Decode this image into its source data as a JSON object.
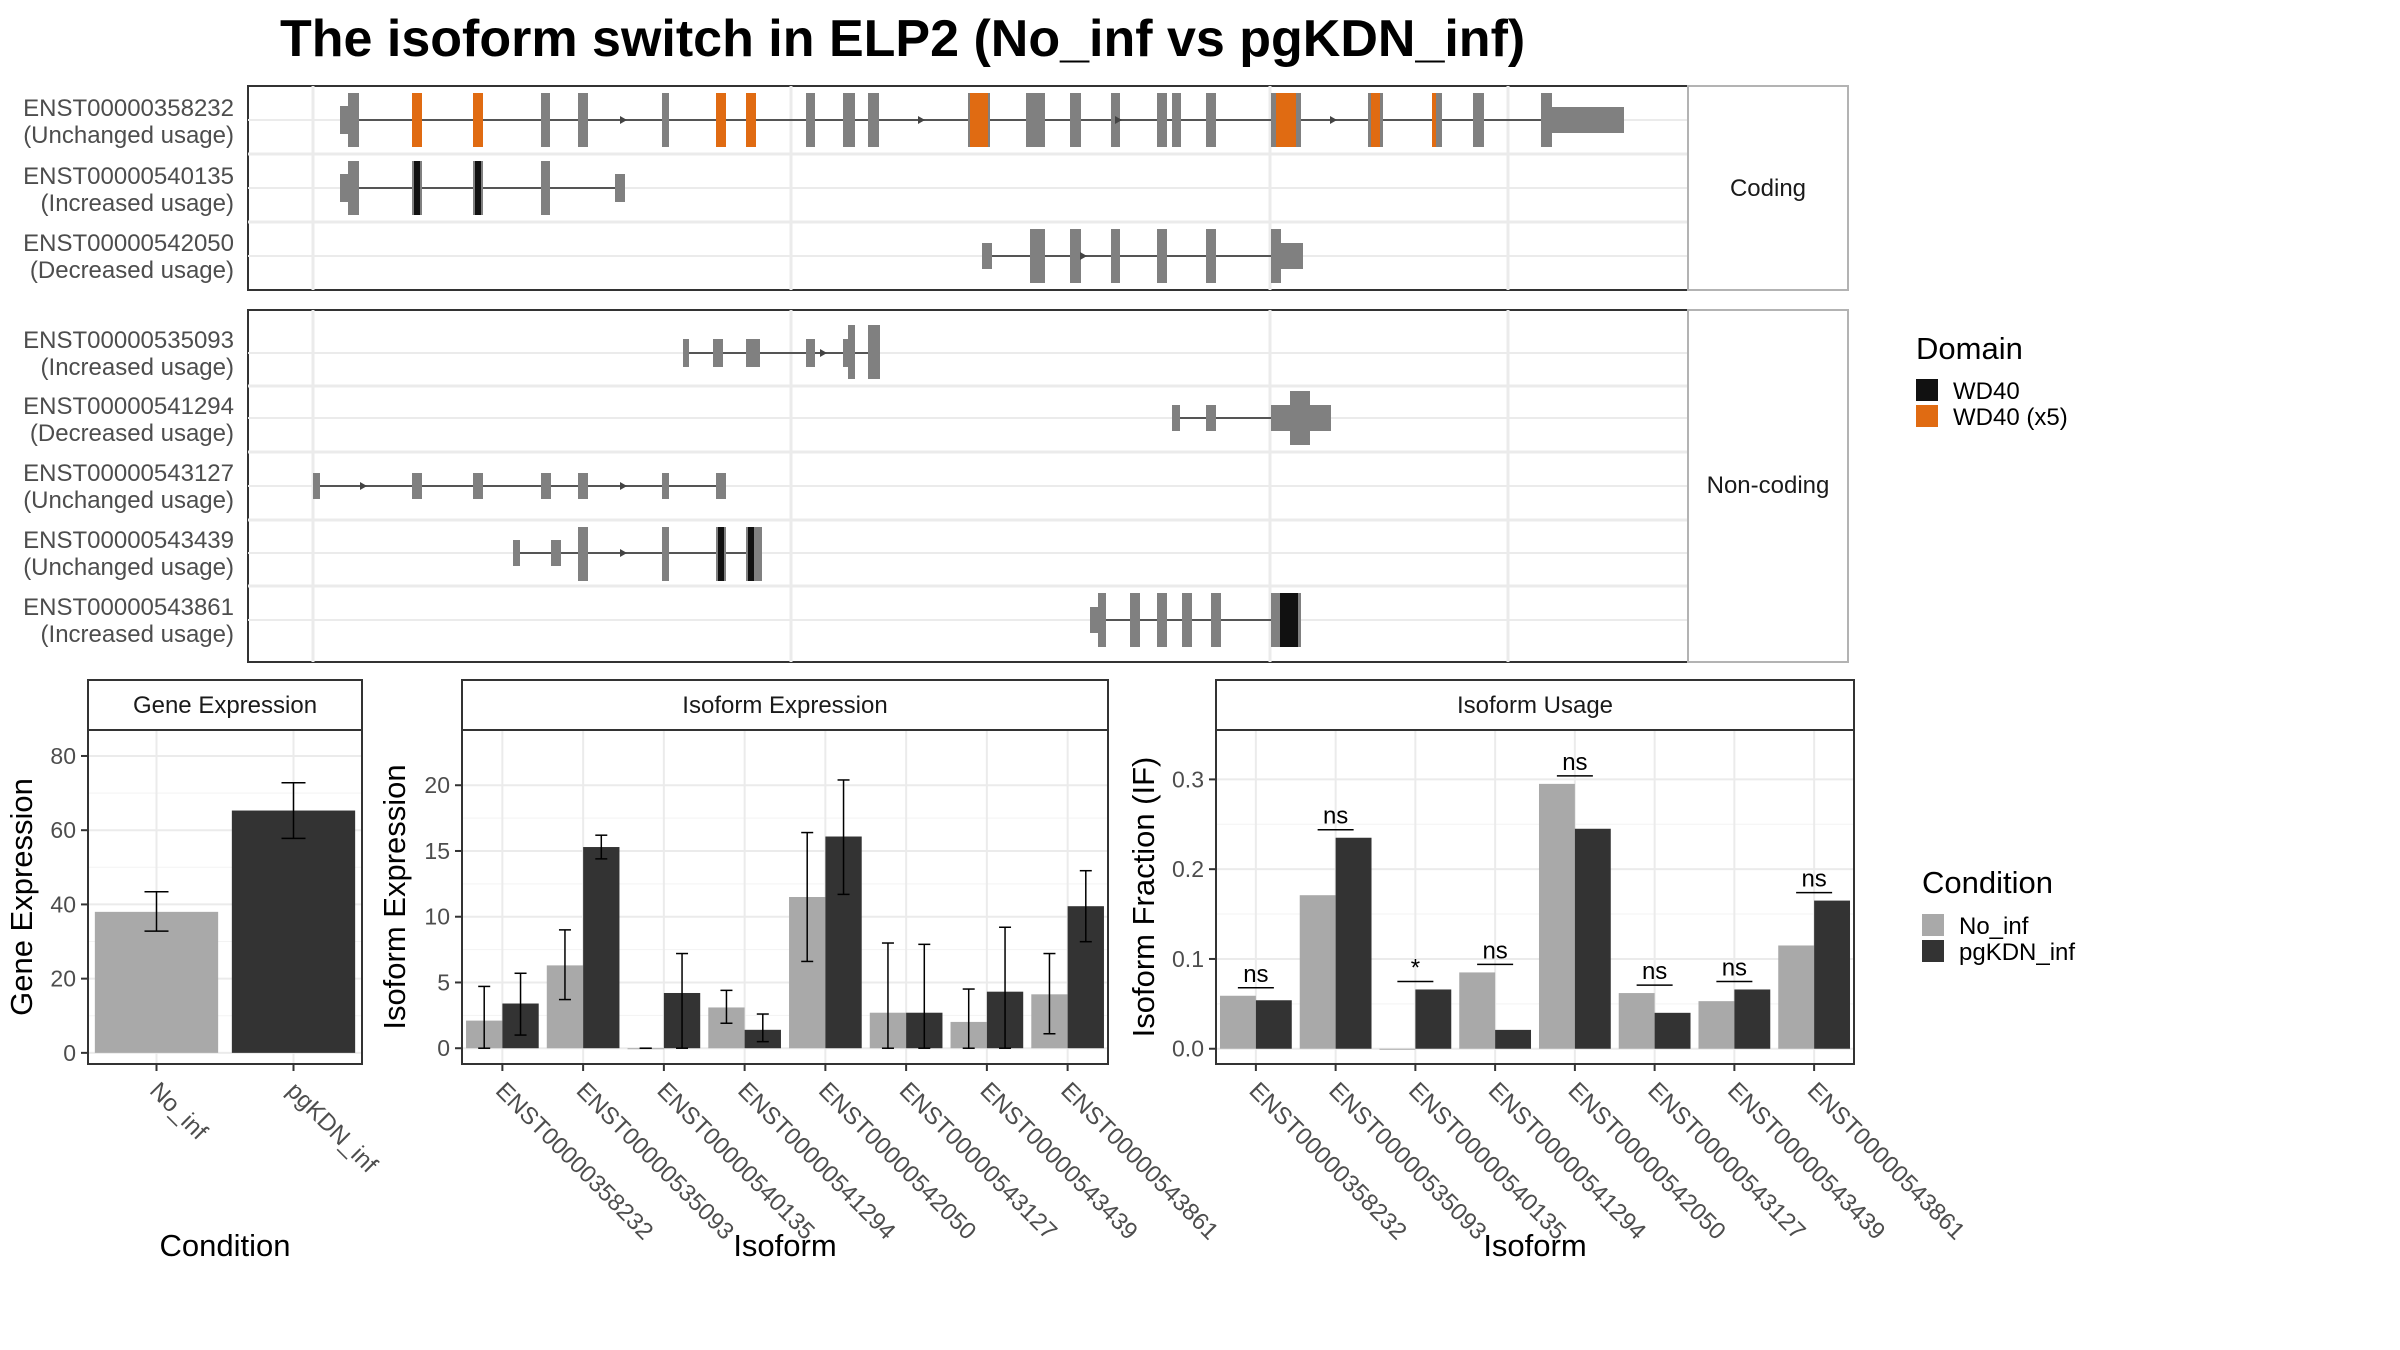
{
  "title": "The isoform switch in ELP2 (No_inf vs pgKDN_inf)",
  "colors": {
    "no_inf": "#a9a9a9",
    "pgkdn_inf": "#333333",
    "exon": "#808080",
    "wd40": "#111111",
    "wd40x5": "#e06b12",
    "grid": "#ebebeb",
    "strip_text": "#1a1a1a"
  },
  "structure": {
    "facets": [
      "Coding",
      "Non-coding"
    ],
    "transcripts": [
      {
        "id": "ENST00000358232",
        "usage": "(Unchanged usage)",
        "facet": "Coding"
      },
      {
        "id": "ENST00000540135",
        "usage": "(Increased usage)",
        "facet": "Coding"
      },
      {
        "id": "ENST00000542050",
        "usage": "(Decreased usage)",
        "facet": "Coding"
      },
      {
        "id": "ENST00000535093",
        "usage": "(Increased usage)",
        "facet": "Non-coding"
      },
      {
        "id": "ENST00000541294",
        "usage": "(Decreased usage)",
        "facet": "Non-coding"
      },
      {
        "id": "ENST00000543127",
        "usage": "(Unchanged usage)",
        "facet": "Non-coding"
      },
      {
        "id": "ENST00000543439",
        "usage": "(Unchanged usage)",
        "facet": "Non-coding"
      },
      {
        "id": "ENST00000543861",
        "usage": "(Increased usage)",
        "facet": "Non-coding"
      }
    ]
  },
  "domain_legend": {
    "title": "Domain",
    "entries": [
      {
        "label": "WD40",
        "color": "#111111"
      },
      {
        "label": "WD40 (x5)",
        "color": "#e06b12"
      }
    ]
  },
  "condition_legend": {
    "title": "Condition",
    "entries": [
      {
        "label": "No_inf",
        "color": "#a9a9a9"
      },
      {
        "label": "pgKDN_inf",
        "color": "#333333"
      }
    ]
  },
  "chart_data": [
    {
      "type": "bar",
      "title": "Gene Expression",
      "xlabel": "Condition",
      "ylabel": "Gene Expression",
      "categories": [
        "No_inf",
        "pgKDN_inf"
      ],
      "values": [
        38,
        65.3
      ],
      "error_low": [
        32.8,
        57.8
      ],
      "error_high": [
        43.4,
        72.8
      ],
      "ylim": [
        -3,
        87
      ],
      "yticks": [
        0,
        20,
        40,
        60,
        80
      ],
      "grid": true
    },
    {
      "type": "bar",
      "title": "Isoform Expression",
      "xlabel": "Isoform",
      "ylabel": "Isoform Expression",
      "categories": [
        "ENST00000358232",
        "ENST00000535093",
        "ENST00000540135",
        "ENST00000541294",
        "ENST00000542050",
        "ENST00000543127",
        "ENST00000543439",
        "ENST00000543861"
      ],
      "series": [
        {
          "name": "No_inf",
          "values": [
            2.1,
            6.3,
            0,
            3.1,
            11.5,
            2.7,
            2.0,
            4.1
          ],
          "error_low": [
            0,
            3.7,
            0,
            1.9,
            6.6,
            0,
            0,
            1.1
          ],
          "error_high": [
            4.7,
            9.0,
            0,
            4.4,
            16.4,
            8.0,
            4.5,
            7.2
          ]
        },
        {
          "name": "pgKDN_inf",
          "values": [
            3.4,
            15.3,
            4.2,
            1.4,
            16.1,
            2.7,
            4.3,
            10.8
          ],
          "error_low": [
            1.0,
            14.4,
            0,
            0.5,
            11.7,
            0,
            0,
            8.1
          ],
          "error_high": [
            5.7,
            16.2,
            7.2,
            2.6,
            20.4,
            7.9,
            9.2,
            13.5
          ]
        }
      ],
      "ylim": [
        -1.2,
        24.2
      ],
      "yticks": [
        0,
        5,
        10,
        15,
        20
      ],
      "grid": true
    },
    {
      "type": "bar",
      "title": "Isoform Usage",
      "xlabel": "Isoform",
      "ylabel": "Isoform Fraction (IF)",
      "categories": [
        "ENST00000358232",
        "ENST00000535093",
        "ENST00000540135",
        "ENST00000541294",
        "ENST00000542050",
        "ENST00000543127",
        "ENST00000543439",
        "ENST00000543861"
      ],
      "series": [
        {
          "name": "No_inf",
          "values": [
            0.059,
            0.171,
            0.0,
            0.085,
            0.295,
            0.062,
            0.053,
            0.115
          ]
        },
        {
          "name": "pgKDN_inf",
          "values": [
            0.054,
            0.235,
            0.066,
            0.021,
            0.245,
            0.04,
            0.066,
            0.165
          ]
        }
      ],
      "annotations": [
        "ns",
        "ns",
        "*",
        "ns",
        "ns",
        "ns",
        "ns",
        "ns"
      ],
      "ylim": [
        -0.017,
        0.355
      ],
      "yticks": [
        0.0,
        0.1,
        0.2,
        0.3
      ],
      "ytick_labels": [
        "0.0",
        "0.1",
        "0.2",
        "0.3"
      ],
      "grid": true
    }
  ]
}
